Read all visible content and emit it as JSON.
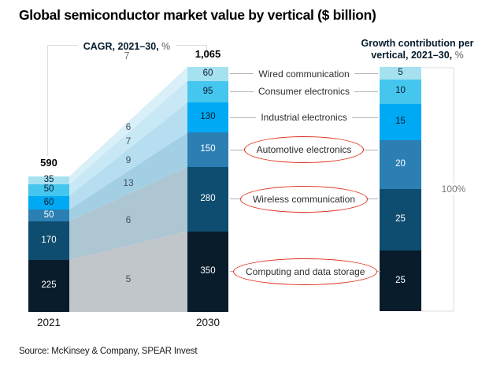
{
  "title": "Global semiconductor market value by vertical ($ billion)",
  "source": "Source: McKinsey & Company, SPEAR Invest",
  "cagr_bracket": {
    "label": "CAGR, 2021–30,",
    "unit": "%",
    "overall_value": "7"
  },
  "growth_panel": {
    "header_line1": "Growth contribution per",
    "header_line2": "vertical, 2021–30,",
    "unit": "%",
    "total_label": "100%"
  },
  "colors": {
    "red_circle": "#e0301e",
    "connector": "#b3b3b3",
    "bracket": "#dcdcdc",
    "muted_text": "#767676"
  },
  "chart_data": {
    "type": "stacked-bar-flow",
    "left_year": "2021",
    "right_year": "2030",
    "left_total": 590,
    "right_total": 1065,
    "left_total_label": "590",
    "right_total_label": "1,065",
    "growth_total": 100,
    "overall_cagr_pct": 7,
    "categories": [
      {
        "name": "Wired communication",
        "v2021": 35,
        "v2030": 60,
        "cagr": "6",
        "growth": 5,
        "color": "#a6e1f0",
        "band_color": "#daf0f8",
        "value_text": "dark",
        "circled": false
      },
      {
        "name": "Consumer electronics",
        "v2021": 50,
        "v2030": 95,
        "cagr": "7",
        "growth": 10,
        "color": "#45c6ee",
        "band_color": "#c9e8f5",
        "value_text": "dark",
        "circled": false
      },
      {
        "name": "Industrial electronics",
        "v2021": 60,
        "v2030": 130,
        "cagr": "9",
        "growth": 15,
        "color": "#00a9f4",
        "band_color": "#b6def0",
        "value_text": "dark",
        "circled": false
      },
      {
        "name": "Automotive electronics",
        "v2021": 50,
        "v2030": 150,
        "cagr": "13",
        "growth": 20,
        "color": "#2b7fb3",
        "band_color": "#a3cfe4",
        "value_text": "light",
        "circled": true
      },
      {
        "name": "Wireless communication",
        "v2021": 170,
        "v2030": 280,
        "cagr": "6",
        "growth": 25,
        "color": "#0e4d6f",
        "band_color": "#aec5d2",
        "value_text": "light",
        "circled": true
      },
      {
        "name": "Computing and data storage",
        "v2021": 225,
        "v2030": 350,
        "cagr": "5",
        "growth": 25,
        "color": "#081c2c",
        "band_color": "#c1c6ca",
        "value_text": "light",
        "circled": true
      }
    ]
  }
}
